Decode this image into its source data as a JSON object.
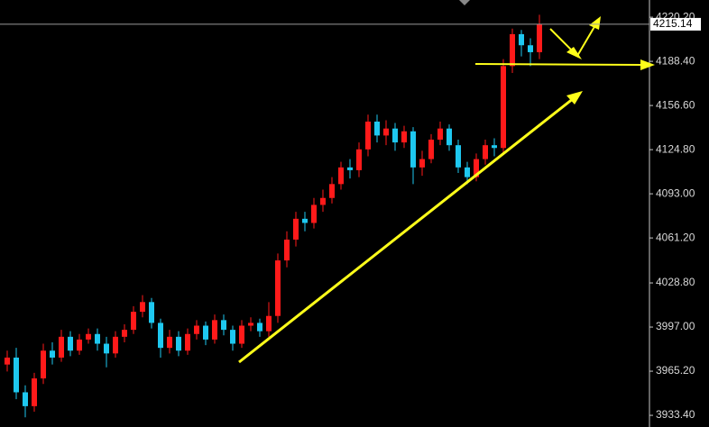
{
  "chart_data": {
    "type": "candlestick",
    "up_color": "#ff1a1a",
    "down_color": "#1ec8f0",
    "open": [
      3970,
      3975,
      3950,
      3940,
      3960,
      3980,
      3975,
      3990,
      3980,
      3988,
      3992,
      3985,
      3978,
      3990,
      3995,
      4008,
      4015,
      4000,
      3982,
      3990,
      3980,
      3992,
      3998,
      3988,
      4002,
      3995,
      3985,
      3998,
      4000,
      3994,
      4005,
      4045,
      4060,
      4075,
      4072,
      4085,
      4090,
      4100,
      4112,
      4110,
      4125,
      4145,
      4135,
      4140,
      4130,
      4138,
      4112,
      4118,
      4132,
      4140,
      4128,
      4112,
      4105,
      4118,
      4128,
      4126,
      4185,
      4208,
      4200,
      4195
    ],
    "high": [
      3980,
      3982,
      3955,
      3964,
      3985,
      3986,
      3995,
      3994,
      3992,
      3996,
      3996,
      3990,
      3994,
      3999,
      4012,
      4020,
      4018,
      4003,
      3995,
      3994,
      3996,
      4002,
      4001,
      4006,
      4006,
      3998,
      4002,
      4004,
      4003,
      4015,
      4050,
      4066,
      4080,
      4080,
      4090,
      4096,
      4105,
      4116,
      4118,
      4130,
      4150,
      4150,
      4146,
      4144,
      4142,
      4141,
      4124,
      4136,
      4145,
      4143,
      4132,
      4116,
      4122,
      4132,
      4133,
      4190,
      4212,
      4211,
      4205,
      4222
    ],
    "low": [
      3965,
      3945,
      3932,
      3936,
      3956,
      3970,
      3972,
      3976,
      3977,
      3985,
      3980,
      3968,
      3975,
      3986,
      3992,
      4004,
      3996,
      3975,
      3978,
      3976,
      3977,
      3988,
      3984,
      3985,
      3991,
      3980,
      3982,
      3994,
      3990,
      3990,
      4000,
      4040,
      4055,
      4066,
      4068,
      4080,
      4086,
      4096,
      4104,
      4105,
      4120,
      4130,
      4128,
      4124,
      4126,
      4100,
      4106,
      4115,
      4128,
      4124,
      4108,
      4100,
      4102,
      4114,
      4120,
      4122,
      4180,
      4192,
      4185,
      4190
    ],
    "close": [
      3975,
      3950,
      3940,
      3960,
      3980,
      3975,
      3990,
      3980,
      3988,
      3992,
      3985,
      3978,
      3990,
      3995,
      4008,
      4015,
      4000,
      3982,
      3990,
      3980,
      3992,
      3998,
      3988,
      4002,
      3995,
      3985,
      3998,
      4000,
      3994,
      4005,
      4045,
      4060,
      4075,
      4072,
      4085,
      4090,
      4100,
      4112,
      4110,
      4125,
      4145,
      4135,
      4140,
      4130,
      4138,
      4112,
      4118,
      4132,
      4140,
      4128,
      4112,
      4105,
      4118,
      4128,
      4126,
      4185,
      4208,
      4200,
      4195,
      4215
    ],
    "ylim": [
      3925,
      4232.6
    ],
    "yticks": [
      {
        "value": 3933.4,
        "label": "3933.40"
      },
      {
        "value": 3965.2,
        "label": "3965.20"
      },
      {
        "value": 3997,
        "label": "3997.00"
      },
      {
        "value": 4028.8,
        "label": "4028.80"
      },
      {
        "value": 4061.2,
        "label": "4061.20"
      },
      {
        "value": 4093,
        "label": "4093.00"
      },
      {
        "value": 4124.8,
        "label": "4124.80"
      },
      {
        "value": 4156.6,
        "label": "4156.60"
      },
      {
        "value": 4188.4,
        "label": "4188.40"
      },
      {
        "value": 4220.2,
        "label": "4220.20"
      }
    ],
    "current_price": {
      "value": 4215.14,
      "label": "4215.14"
    }
  }
}
